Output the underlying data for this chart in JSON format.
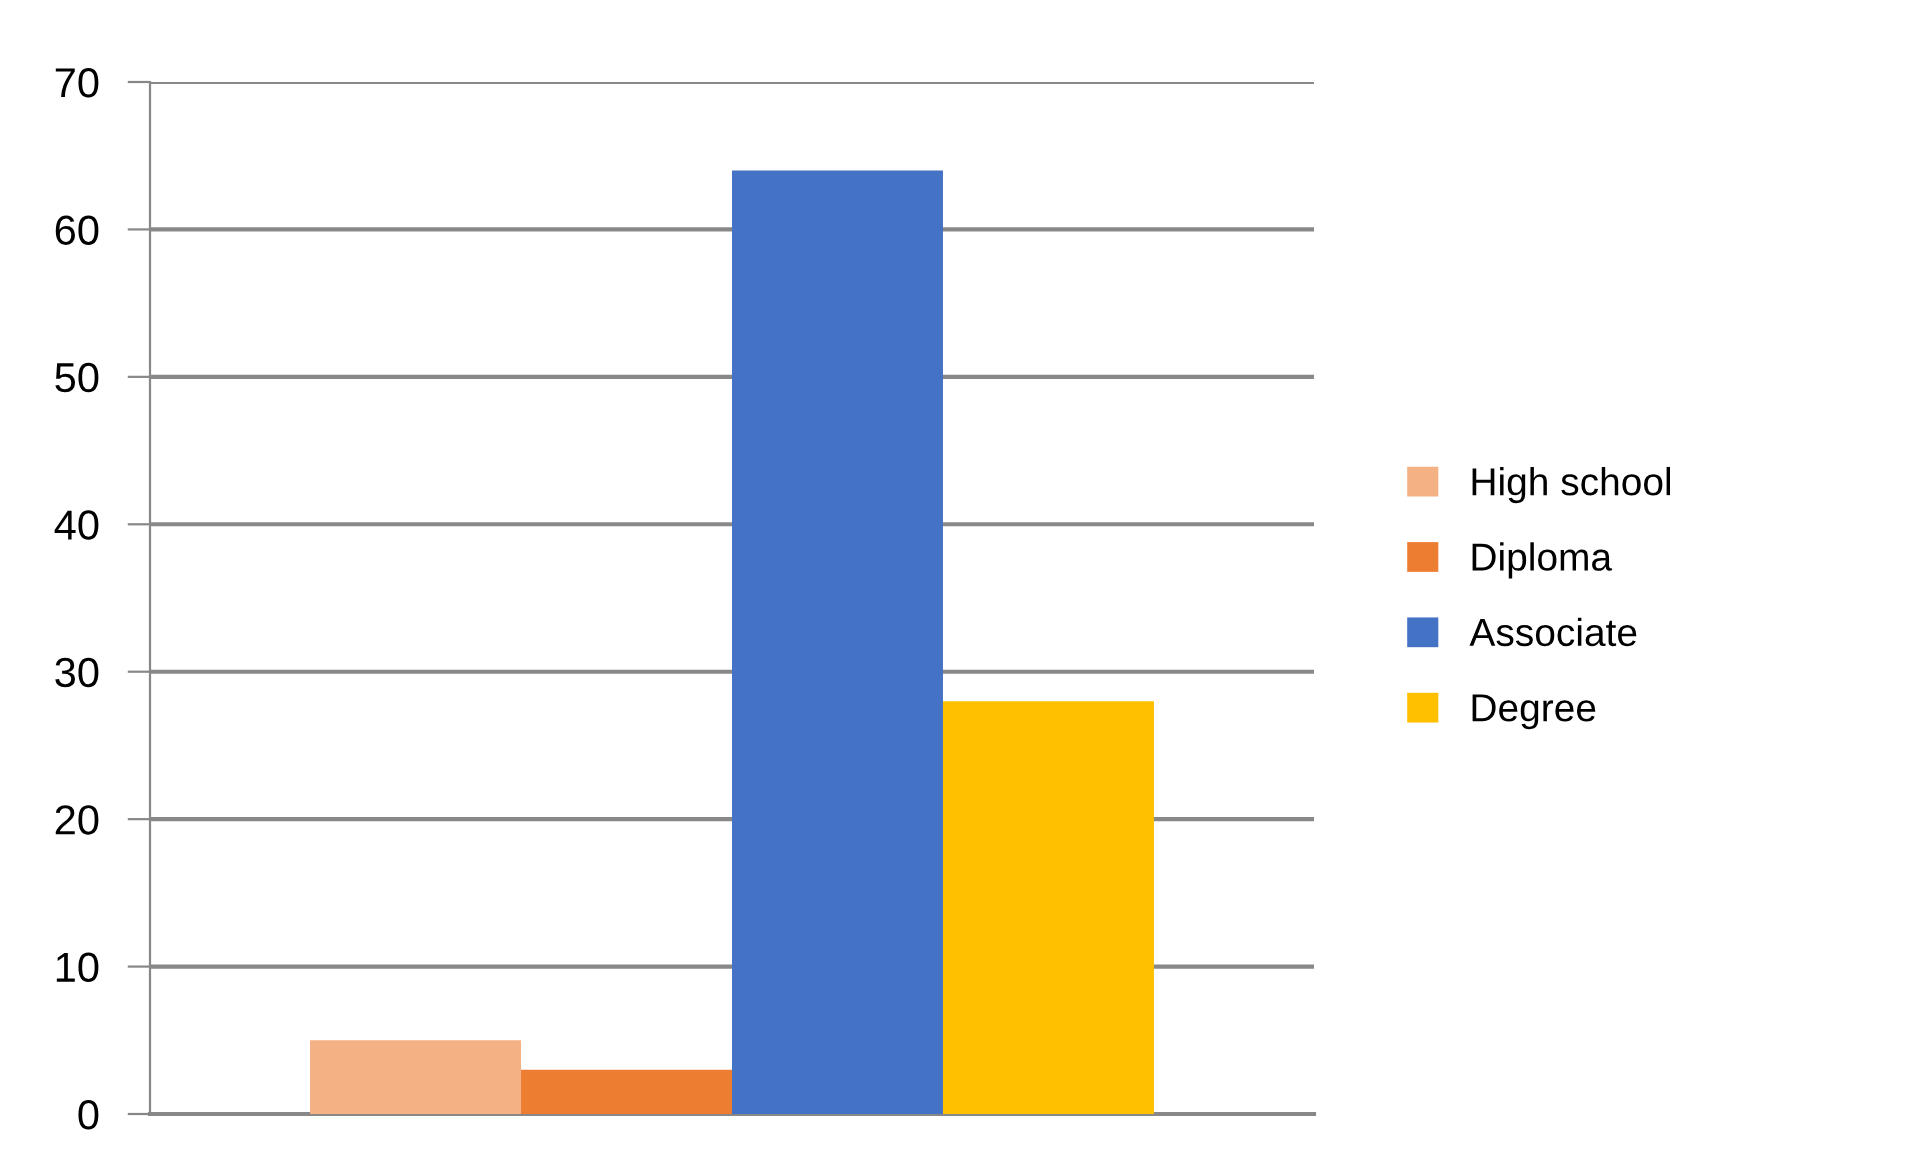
{
  "chart_data": {
    "type": "bar",
    "categories": [
      null
    ],
    "series": [
      {
        "name": "High school",
        "color": "#f4b183",
        "values": [
          5
        ]
      },
      {
        "name": "Diploma",
        "color": "#ed7d31",
        "values": [
          3
        ]
      },
      {
        "name": "Associate",
        "color": "#4472c4",
        "values": [
          64
        ]
      },
      {
        "name": "Degree",
        "color": "#ffc000",
        "values": [
          28
        ]
      }
    ],
    "ylim": [
      0,
      70
    ],
    "yticks": [
      0,
      10,
      20,
      30,
      40,
      50,
      60,
      70
    ],
    "grid": "y",
    "legend": "right"
  }
}
